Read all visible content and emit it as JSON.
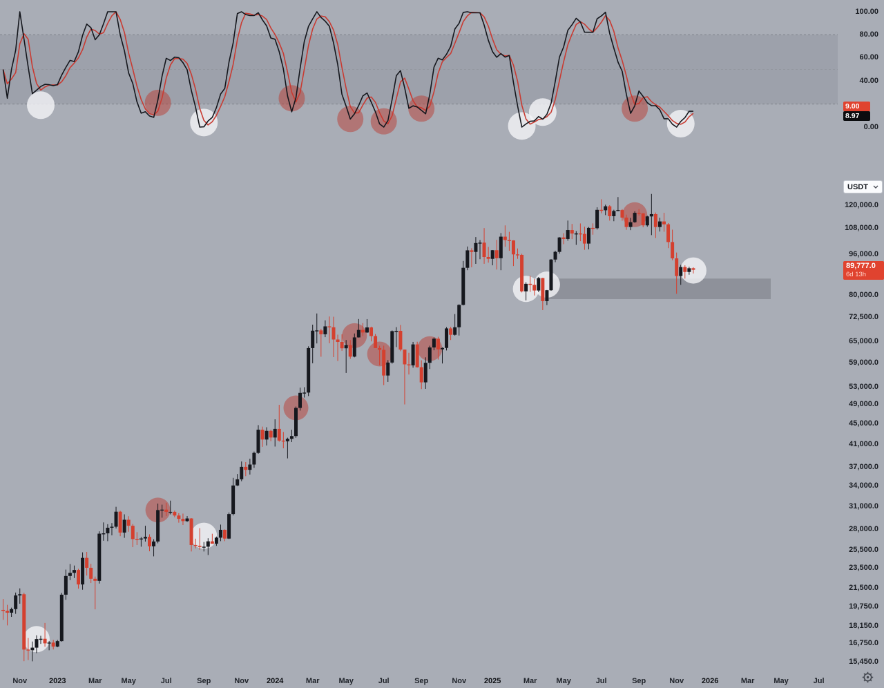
{
  "oscillator": {
    "axis_ticks": [
      {
        "label": "100.00",
        "value": 100
      },
      {
        "label": "80.00",
        "value": 80
      },
      {
        "label": "60.00",
        "value": 60
      },
      {
        "label": "40.00",
        "value": 40
      },
      {
        "label": "0.00",
        "value": 0
      }
    ],
    "last_values": {
      "d_label": "9.00",
      "k_label": "8.97"
    },
    "levels": {
      "upper": 80,
      "mid": 50,
      "lower": 20
    },
    "indicator": {
      "type": "stoch-rsi",
      "params": [
        14,
        14,
        3,
        3
      ]
    },
    "markers": [
      {
        "idx": 9,
        "value": 19,
        "color": "white"
      },
      {
        "idx": 37,
        "value": 21,
        "color": "red"
      },
      {
        "idx": 48,
        "value": 4,
        "color": "white"
      },
      {
        "idx": 69,
        "value": 25,
        "color": "red"
      },
      {
        "idx": 83,
        "value": 7,
        "color": "red"
      },
      {
        "idx": 91,
        "value": 5,
        "color": "red"
      },
      {
        "idx": 100,
        "value": 16,
        "color": "red"
      },
      {
        "idx": 124,
        "value": 1,
        "color": "white"
      },
      {
        "idx": 129,
        "value": 13,
        "color": "white"
      },
      {
        "idx": 151,
        "value": 16,
        "color": "red"
      },
      {
        "idx": 162,
        "value": 3,
        "color": "white"
      }
    ]
  },
  "price_chart": {
    "unit_selector": {
      "label": "USDT"
    },
    "current_price": {
      "label": "89,777.0",
      "countdown": "6d 13h",
      "value": 89777
    },
    "axis_ticks": [
      {
        "label": "120,000.0",
        "value": 120000
      },
      {
        "label": "108,000.0",
        "value": 108000
      },
      {
        "label": "96,000.0",
        "value": 96000
      },
      {
        "label": "80,000.0",
        "value": 80000
      },
      {
        "label": "72,500.0",
        "value": 72500
      },
      {
        "label": "65,000.0",
        "value": 65000
      },
      {
        "label": "59,000.0",
        "value": 59000
      },
      {
        "label": "53,000.0",
        "value": 53000
      },
      {
        "label": "49,000.0",
        "value": 49000
      },
      {
        "label": "45,000.0",
        "value": 45000
      },
      {
        "label": "41,000.0",
        "value": 41000
      },
      {
        "label": "37,000.0",
        "value": 37000
      },
      {
        "label": "34,000.0",
        "value": 34000
      },
      {
        "label": "31,000.0",
        "value": 31000
      },
      {
        "label": "28,000.0",
        "value": 28000
      },
      {
        "label": "25,500.0",
        "value": 25500
      },
      {
        "label": "23,500.0",
        "value": 23500
      },
      {
        "label": "21,500.0",
        "value": 21500
      },
      {
        "label": "19,750.0",
        "value": 19750
      },
      {
        "label": "18,150.0",
        "value": 18150
      },
      {
        "label": "16,750.0",
        "value": 16750
      },
      {
        "label": "15,450.0",
        "value": 15450
      }
    ],
    "zone": {
      "from_idx": 131,
      "to_idx": 184,
      "price_top": 86300,
      "price_bottom": 78700
    },
    "markers": [
      {
        "idx": 8,
        "price": 17100,
        "color": "white"
      },
      {
        "idx": 37,
        "price": 30530,
        "color": "red"
      },
      {
        "idx": 48,
        "price": 27200,
        "color": "white"
      },
      {
        "idx": 70,
        "price": 48290,
        "color": "red"
      },
      {
        "idx": 84,
        "price": 66800,
        "color": "red"
      },
      {
        "idx": 90,
        "price": 61500,
        "color": "red"
      },
      {
        "idx": 102,
        "price": 63000,
        "color": "red"
      },
      {
        "idx": 125,
        "price": 82400,
        "color": "white"
      },
      {
        "idx": 130,
        "price": 84000,
        "color": "white"
      },
      {
        "idx": 151,
        "price": 115000,
        "color": "red"
      },
      {
        "idx": 165,
        "price": 89500,
        "color": "white"
      }
    ]
  },
  "time_axis": {
    "ticks": [
      {
        "label": "Nov",
        "idx": 4,
        "year": false
      },
      {
        "label": "2023",
        "idx": 13,
        "year": true
      },
      {
        "label": "Mar",
        "idx": 22,
        "year": false
      },
      {
        "label": "May",
        "idx": 30,
        "year": false
      },
      {
        "label": "Jul",
        "idx": 39,
        "year": false
      },
      {
        "label": "Sep",
        "idx": 48,
        "year": false
      },
      {
        "label": "Nov",
        "idx": 57,
        "year": false
      },
      {
        "label": "2024",
        "idx": 65,
        "year": true
      },
      {
        "label": "Mar",
        "idx": 74,
        "year": false
      },
      {
        "label": "May",
        "idx": 82,
        "year": false
      },
      {
        "label": "Jul",
        "idx": 91,
        "year": false
      },
      {
        "label": "Sep",
        "idx": 100,
        "year": false
      },
      {
        "label": "Nov",
        "idx": 109,
        "year": false
      },
      {
        "label": "2025",
        "idx": 117,
        "year": true
      },
      {
        "label": "Mar",
        "idx": 126,
        "year": false
      },
      {
        "label": "May",
        "idx": 134,
        "year": false
      },
      {
        "label": "Jul",
        "idx": 143,
        "year": false
      },
      {
        "label": "Sep",
        "idx": 152,
        "year": false
      },
      {
        "label": "Nov",
        "idx": 161,
        "year": false
      },
      {
        "label": "2026",
        "idx": 169,
        "year": true
      },
      {
        "label": "Mar",
        "idx": 178,
        "year": false
      },
      {
        "label": "May",
        "idx": 186,
        "year": false
      },
      {
        "label": "Jul",
        "idx": 195,
        "year": false
      }
    ]
  },
  "colors": {
    "background": "#a9adb6",
    "candle_up": "#16181e",
    "candle_down": "#d4402f",
    "osc_k_line": "#14161c",
    "osc_d_line": "#c93b32",
    "osc_band": "#9da1ab",
    "band_edge_dash": "#7d818b",
    "band_mid_dash": "#93979f",
    "zone_fill": "#8e919a",
    "label_red": "#e0432f",
    "label_black": "#0b0c0f",
    "circle_red": "rgba(186,62,52,0.5)",
    "circle_white": "rgba(246,246,248,0.78)"
  },
  "chart_data": {
    "type": "candlestick+oscillator",
    "timeframe": "1W",
    "scale": "log",
    "note": "weekly OHLC, oscillator = stochastic-RSI style 0-100 derived from closes",
    "candles": [
      [
        19500,
        20480,
        18650,
        19420
      ],
      [
        19420,
        19950,
        18190,
        19260
      ],
      [
        19260,
        19700,
        18900,
        19570
      ],
      [
        19570,
        21080,
        19160,
        20810
      ],
      [
        20810,
        21480,
        20050,
        20920
      ],
      [
        20920,
        21070,
        15490,
        16320
      ],
      [
        16320,
        17190,
        15570,
        16270
      ],
      [
        16270,
        16920,
        15480,
        16460
      ],
      [
        16460,
        17400,
        16060,
        17110
      ],
      [
        17110,
        17360,
        16740,
        17130
      ],
      [
        17130,
        18390,
        16530,
        16780
      ],
      [
        16780,
        16950,
        16270,
        16840
      ],
      [
        16840,
        17040,
        16330,
        16540
      ],
      [
        16540,
        17040,
        16490,
        16950
      ],
      [
        16950,
        21050,
        16910,
        20880
      ],
      [
        20880,
        23370,
        20400,
        22710
      ],
      [
        22710,
        23960,
        22290,
        23030
      ],
      [
        23030,
        23800,
        22500,
        23330
      ],
      [
        23330,
        23450,
        21450,
        21860
      ],
      [
        21860,
        25250,
        21350,
        24630
      ],
      [
        24630,
        25300,
        22750,
        23560
      ],
      [
        23560,
        23980,
        22000,
        22430
      ],
      [
        22430,
        22650,
        19550,
        22220
      ],
      [
        22220,
        27750,
        21950,
        27460
      ],
      [
        27460,
        28880,
        26600,
        27500
      ],
      [
        27500,
        28650,
        26550,
        28200
      ],
      [
        28200,
        28800,
        27250,
        28330
      ],
      [
        28330,
        30980,
        28100,
        30310
      ],
      [
        30310,
        30420,
        27150,
        27590
      ],
      [
        27590,
        29950,
        26950,
        29230
      ],
      [
        29230,
        29700,
        27700,
        28450
      ],
      [
        28450,
        28680,
        25850,
        26800
      ],
      [
        26800,
        27650,
        26100,
        26750
      ],
      [
        26750,
        27050,
        25900,
        26870
      ],
      [
        26870,
        28450,
        26500,
        27070
      ],
      [
        27070,
        27380,
        25370,
        25940
      ],
      [
        25940,
        26780,
        24800,
        26510
      ],
      [
        26510,
        31430,
        26300,
        30530
      ],
      [
        30530,
        31280,
        29500,
        30590
      ],
      [
        30590,
        31540,
        29730,
        30290
      ],
      [
        30290,
        31850,
        29950,
        30290
      ],
      [
        30290,
        30450,
        29560,
        29790
      ],
      [
        29790,
        30100,
        28850,
        29350
      ],
      [
        29350,
        30050,
        28550,
        29050
      ],
      [
        29050,
        29720,
        28950,
        29400
      ],
      [
        29400,
        29450,
        25350,
        26100
      ],
      [
        26100,
        26850,
        25700,
        26000
      ],
      [
        26000,
        28150,
        25550,
        25870
      ],
      [
        25870,
        26450,
        25350,
        25900
      ],
      [
        25900,
        26900,
        24950,
        26530
      ],
      [
        26530,
        27450,
        26250,
        26250
      ],
      [
        26250,
        27100,
        26000,
        26970
      ],
      [
        26970,
        28600,
        26550,
        27940
      ],
      [
        27940,
        27990,
        26550,
        26860
      ],
      [
        26860,
        30200,
        26800,
        29990
      ],
      [
        29990,
        35280,
        29800,
        34090
      ],
      [
        34090,
        35900,
        34000,
        35050
      ],
      [
        35050,
        37970,
        34750,
        37060
      ],
      [
        37060,
        37860,
        35550,
        36570
      ],
      [
        36570,
        38450,
        35800,
        37450
      ],
      [
        37450,
        39700,
        36900,
        39460
      ],
      [
        39460,
        44700,
        39300,
        43790
      ],
      [
        43790,
        44400,
        40550,
        41900
      ],
      [
        41900,
        44280,
        40800,
        43560
      ],
      [
        43560,
        43800,
        41600,
        42280
      ],
      [
        42280,
        45880,
        40600,
        43950
      ],
      [
        43950,
        48970,
        41500,
        41700
      ],
      [
        41700,
        43350,
        40280,
        41580
      ],
      [
        41580,
        42250,
        38500,
        42030
      ],
      [
        42030,
        43790,
        41420,
        42560
      ],
      [
        42560,
        48590,
        42220,
        48290
      ],
      [
        48290,
        52890,
        47710,
        51660
      ],
      [
        51660,
        52990,
        50590,
        51730
      ],
      [
        51730,
        63680,
        50930,
        63170
      ],
      [
        63170,
        70180,
        59000,
        68300
      ],
      [
        68300,
        73790,
        64500,
        68390
      ],
      [
        68390,
        68900,
        60770,
        67210
      ],
      [
        67210,
        71550,
        66350,
        69640
      ],
      [
        69640,
        72800,
        64550,
        69360
      ],
      [
        69360,
        72720,
        60660,
        65650
      ],
      [
        65650,
        67100,
        59600,
        64940
      ],
      [
        64940,
        67200,
        62400,
        63110
      ],
      [
        63110,
        65500,
        56500,
        64030
      ],
      [
        64030,
        65500,
        60200,
        60790
      ],
      [
        60790,
        67450,
        60600,
        66270
      ],
      [
        66270,
        71980,
        66220,
        68530
      ],
      [
        68530,
        70670,
        66670,
        67750
      ],
      [
        67750,
        71950,
        67600,
        69310
      ],
      [
        69310,
        69550,
        65100,
        66670
      ],
      [
        66670,
        67300,
        63380,
        63180
      ],
      [
        63180,
        63850,
        58470,
        62680
      ],
      [
        62680,
        63860,
        53500,
        55850
      ],
      [
        55850,
        59850,
        54260,
        59200
      ],
      [
        59200,
        68380,
        58900,
        68160
      ],
      [
        68160,
        69400,
        63450,
        68250
      ],
      [
        68250,
        70080,
        62300,
        62750
      ],
      [
        62750,
        62780,
        49050,
        58720
      ],
      [
        58720,
        61850,
        56100,
        58460
      ],
      [
        58460,
        64950,
        57850,
        64220
      ],
      [
        64220,
        65000,
        57860,
        57970
      ],
      [
        57970,
        59800,
        52550,
        54160
      ],
      [
        54160,
        60600,
        52600,
        59130
      ],
      [
        59130,
        63850,
        57500,
        63350
      ],
      [
        63350,
        66250,
        62550,
        65890
      ],
      [
        65890,
        66450,
        60000,
        62820
      ],
      [
        62820,
        63360,
        58950,
        63210
      ],
      [
        63210,
        69400,
        62500,
        69000
      ],
      [
        69000,
        69500,
        65500,
        67050
      ],
      [
        67050,
        73600,
        66800,
        69360
      ],
      [
        69360,
        76900,
        66830,
        76680
      ],
      [
        76680,
        93400,
        76500,
        90580
      ],
      [
        90580,
        99660,
        89600,
        97970
      ],
      [
        97970,
        98900,
        90800,
        97280
      ],
      [
        97280,
        104000,
        92200,
        101240
      ],
      [
        101240,
        102600,
        94150,
        101420
      ],
      [
        101420,
        108260,
        92230,
        95100
      ],
      [
        95100,
        99500,
        92700,
        94300
      ],
      [
        94300,
        98100,
        91600,
        98020
      ],
      [
        98020,
        102700,
        89900,
        94570
      ],
      [
        94570,
        105880,
        89600,
        104180
      ],
      [
        104180,
        109580,
        99550,
        102600
      ],
      [
        102600,
        106450,
        97780,
        102430
      ],
      [
        102430,
        102500,
        91300,
        96200
      ],
      [
        96200,
        98800,
        94300,
        96000
      ],
      [
        96000,
        96500,
        81100,
        81500
      ],
      [
        81500,
        84900,
        78250,
        84300
      ],
      [
        84300,
        87400,
        81300,
        83900
      ],
      [
        83900,
        86100,
        80000,
        81800
      ],
      [
        81800,
        86900,
        81200,
        86500
      ],
      [
        86500,
        86600,
        74900,
        78000
      ],
      [
        78000,
        82000,
        76600,
        81900
      ],
      [
        81900,
        94200,
        81700,
        94000
      ],
      [
        94000,
        97800,
        92900,
        97300
      ],
      [
        97300,
        104000,
        96500,
        103800
      ],
      [
        103800,
        105800,
        100700,
        103100
      ],
      [
        103100,
        111980,
        102300,
        107310
      ],
      [
        107310,
        110300,
        103050,
        105640
      ],
      [
        105640,
        106800,
        100400,
        105690
      ],
      [
        105690,
        110550,
        102100,
        105470
      ],
      [
        105470,
        108950,
        98200,
        100990
      ],
      [
        100990,
        108800,
        98400,
        108360
      ],
      [
        108360,
        110580,
        105100,
        108200
      ],
      [
        108200,
        118860,
        107550,
        117500
      ],
      [
        117500,
        123230,
        115700,
        117280
      ],
      [
        117280,
        120250,
        114750,
        119400
      ],
      [
        119400,
        120000,
        111950,
        114200
      ],
      [
        114200,
        117550,
        111650,
        116900
      ],
      [
        116900,
        124450,
        116800,
        117400
      ],
      [
        117400,
        117900,
        111900,
        113470
      ],
      [
        113470,
        115000,
        107430,
        108790
      ],
      [
        108790,
        113350,
        107270,
        111170
      ],
      [
        111170,
        116750,
        110850,
        115950
      ],
      [
        115950,
        117900,
        114500,
        115680
      ],
      [
        115680,
        115800,
        108650,
        109600
      ],
      [
        109600,
        114450,
        108950,
        114080
      ],
      [
        114080,
        126200,
        104900,
        115270
      ],
      [
        115270,
        116100,
        103550,
        108770
      ],
      [
        108770,
        113400,
        106600,
        111540
      ],
      [
        111540,
        115950,
        106500,
        110100
      ],
      [
        110100,
        110700,
        98950,
        101680
      ],
      [
        101680,
        107500,
        93700,
        94500
      ],
      [
        94500,
        97000,
        80600,
        87300
      ],
      [
        87300,
        91800,
        83900,
        90900
      ],
      [
        90900,
        91600,
        86300,
        88900
      ],
      [
        88900,
        91000,
        87800,
        90400
      ],
      [
        90400,
        90800,
        88300,
        89777
      ]
    ]
  }
}
